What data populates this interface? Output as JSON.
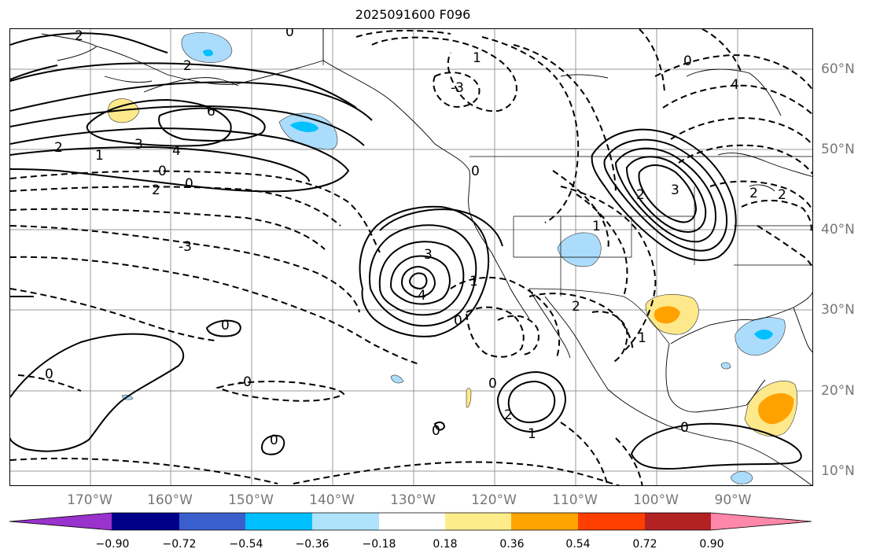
{
  "title": "2025091600 F096",
  "map": {
    "lon_labels": [
      "170°W",
      "160°W",
      "150°W",
      "140°W",
      "130°W",
      "120°W",
      "110°W",
      "100°W",
      "90°W"
    ],
    "lat_labels": [
      "60°N",
      "50°N",
      "40°N",
      "30°N",
      "20°N",
      "10°N"
    ],
    "contour_labels": [
      "2",
      "0",
      "2",
      "6",
      "3",
      "4",
      "2",
      "1",
      "0",
      "2",
      "0",
      "-3",
      "-3",
      "1",
      "0",
      "3",
      "3",
      "2",
      "4",
      "1",
      "0",
      "2",
      "1",
      "0",
      "0",
      "0",
      "0",
      "0",
      "0",
      "-0",
      "1",
      "2",
      "1",
      "0",
      "2",
      "4",
      "2"
    ],
    "fill_colors": {
      "light_blue": "#abdcfb",
      "blue": "#00c0ff",
      "yellow": "#fde98b",
      "orange": "#ffa200"
    }
  },
  "colorbar": {
    "colors": [
      "#9a32cd",
      "#00008b",
      "#3a5fcd",
      "#00bfff",
      "#aee3fb",
      "#ffffff",
      "#feec8b",
      "#ffa500",
      "#ff3f00",
      "#b22222",
      "#ff88aa"
    ],
    "tick_labels": [
      "−0.90",
      "−0.72",
      "−0.54",
      "−0.36",
      "−0.18",
      "0.18",
      "0.36",
      "0.54",
      "0.72",
      "0.90"
    ]
  }
}
